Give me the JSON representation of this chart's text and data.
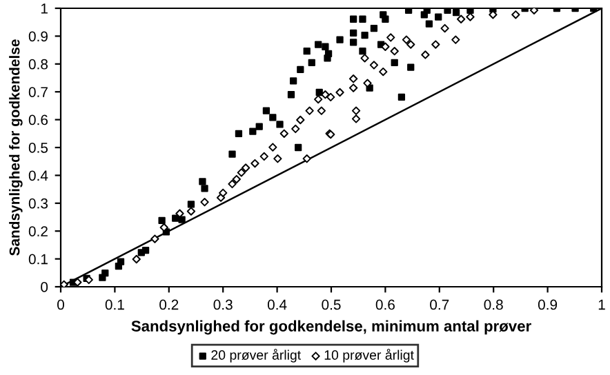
{
  "chart_data": {
    "type": "scatter",
    "xlabel": "Sandsynlighed for godkendelse, minimum antal prøver",
    "ylabel": "Sandsynlighed for godkendelse",
    "xlim": [
      0,
      1
    ],
    "ylim": [
      0,
      1
    ],
    "xticks": [
      0,
      0.1,
      0.2,
      0.3,
      0.4,
      0.5,
      0.6,
      0.7,
      0.8,
      0.9,
      1
    ],
    "yticks": [
      0,
      0.1,
      0.2,
      0.3,
      0.4,
      0.5,
      0.6,
      0.7,
      0.8,
      0.9,
      1
    ],
    "grid": false,
    "legend": "bottom",
    "series": [
      {
        "name": "20 prøver årligt",
        "color": "#000000",
        "marker": "square",
        "x": [
          0.023,
          0.048,
          0.077,
          0.082,
          0.107,
          0.111,
          0.149,
          0.157,
          0.187,
          0.195,
          0.212,
          0.224,
          0.241,
          0.262,
          0.266,
          0.317,
          0.329,
          0.355,
          0.367,
          0.38,
          0.392,
          0.405,
          0.426,
          0.43,
          0.443,
          0.455,
          0.464,
          0.476,
          0.489,
          0.493,
          0.439,
          0.495,
          0.516,
          0.541,
          0.558,
          0.541,
          0.562,
          0.541,
          0.579,
          0.596,
          0.6,
          0.592,
          0.63,
          0.647,
          0.643,
          0.672,
          0.681,
          0.698,
          0.677,
          0.715,
          0.731,
          0.757,
          0.799,
          0.858,
          0.917,
          0.985,
          0.951,
          0.478,
          0.571,
          0.617,
          0.558
        ],
        "values": [
          0.016,
          0.03,
          0.033,
          0.049,
          0.074,
          0.09,
          0.123,
          0.131,
          0.238,
          0.197,
          0.246,
          0.241,
          0.296,
          0.378,
          0.353,
          0.476,
          0.55,
          0.558,
          0.575,
          0.632,
          0.608,
          0.583,
          0.69,
          0.739,
          0.78,
          0.846,
          0.805,
          0.87,
          0.862,
          0.821,
          0.5,
          0.837,
          0.887,
          0.961,
          0.961,
          0.911,
          0.903,
          0.878,
          0.928,
          0.977,
          0.961,
          0.87,
          0.681,
          0.788,
          0.993,
          0.977,
          0.944,
          0.969,
          0.993,
          0.993,
          0.985,
          0.993,
          0.997,
          1.0,
          1.0,
          1.0,
          1.0,
          0.698,
          0.714,
          0.805,
          0.846
        ]
      },
      {
        "name": "10 prøver årligt",
        "color": "#000000",
        "marker": "diamond",
        "x": [
          0.006,
          0.031,
          0.052,
          0.14,
          0.174,
          0.191,
          0.22,
          0.241,
          0.266,
          0.296,
          0.3,
          0.317,
          0.325,
          0.334,
          0.342,
          0.359,
          0.376,
          0.392,
          0.401,
          0.413,
          0.434,
          0.443,
          0.455,
          0.46,
          0.476,
          0.489,
          0.497,
          0.482,
          0.499,
          0.516,
          0.541,
          0.546,
          0.546,
          0.541,
          0.562,
          0.567,
          0.579,
          0.596,
          0.6,
          0.61,
          0.617,
          0.639,
          0.647,
          0.674,
          0.693,
          0.71,
          0.73,
          0.74,
          0.757,
          0.799,
          0.841,
          0.875,
          0.499
        ],
        "values": [
          0.008,
          0.016,
          0.025,
          0.099,
          0.172,
          0.213,
          0.263,
          0.271,
          0.304,
          0.32,
          0.337,
          0.369,
          0.386,
          0.41,
          0.427,
          0.443,
          0.468,
          0.501,
          0.46,
          0.55,
          0.567,
          0.599,
          0.46,
          0.632,
          0.673,
          0.69,
          0.55,
          0.632,
          0.681,
          0.698,
          0.747,
          0.632,
          0.603,
          0.714,
          0.821,
          0.731,
          0.796,
          0.772,
          0.862,
          0.895,
          0.846,
          0.887,
          0.87,
          0.833,
          0.87,
          0.928,
          0.887,
          0.961,
          0.969,
          0.977,
          0.977,
          0.993,
          0.547
        ]
      },
      {
        "type": "line",
        "color": "#000000",
        "marker": "none",
        "x": [
          0,
          1
        ],
        "values": [
          0,
          1
        ]
      }
    ]
  }
}
